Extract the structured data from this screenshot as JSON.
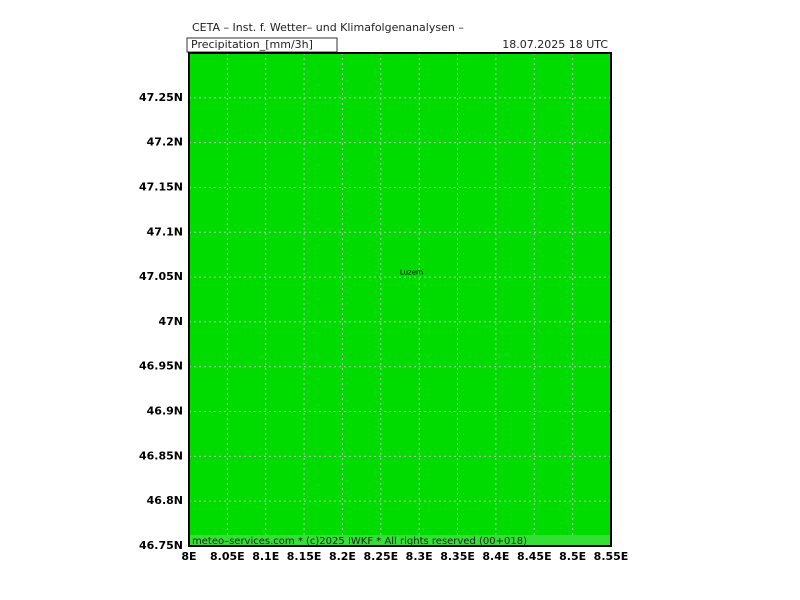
{
  "header": {
    "title": "CETA – Inst. f. Wetter– und Klimafolgenanalysen –",
    "variable": "Precipitation_[mm/3h]",
    "date": "18.07.2025  18 UTC"
  },
  "map": {
    "fill": "#00dc00",
    "grid": true,
    "lonlim": [
      8,
      8.55
    ],
    "latlim": [
      46.75,
      47.3
    ],
    "lonticks": [
      {
        "value": 8,
        "label": "8E"
      },
      {
        "value": 8.05,
        "label": "8.05E"
      },
      {
        "value": 8.1,
        "label": "8.1E"
      },
      {
        "value": 8.15,
        "label": "8.15E"
      },
      {
        "value": 8.2,
        "label": "8.2E"
      },
      {
        "value": 8.25,
        "label": "8.25E"
      },
      {
        "value": 8.3,
        "label": "8.3E"
      },
      {
        "value": 8.35,
        "label": "8.35E"
      },
      {
        "value": 8.4,
        "label": "8.4E"
      },
      {
        "value": 8.45,
        "label": "8.45E"
      },
      {
        "value": 8.5,
        "label": "8.5E"
      },
      {
        "value": 8.55,
        "label": "8.55E"
      }
    ],
    "latticks": [
      {
        "value": 46.75,
        "label": "46.75N"
      },
      {
        "value": 46.8,
        "label": "46.8N"
      },
      {
        "value": 46.85,
        "label": "46.85N"
      },
      {
        "value": 46.9,
        "label": "46.9N"
      },
      {
        "value": 46.95,
        "label": "46.95N"
      },
      {
        "value": 47,
        "label": "47N"
      },
      {
        "value": 47.05,
        "label": "47.05N"
      },
      {
        "value": 47.1,
        "label": "47.1N"
      },
      {
        "value": 47.15,
        "label": "47.15N"
      },
      {
        "value": 47.2,
        "label": "47.2N"
      },
      {
        "value": 47.25,
        "label": "47.25N"
      }
    ],
    "city": {
      "label": "Luzern",
      "lon": 8.29,
      "lat": 47.055
    }
  },
  "footer": "meteo–services.com * (c)2025 IWKF * All rights reserved (00+018)"
}
